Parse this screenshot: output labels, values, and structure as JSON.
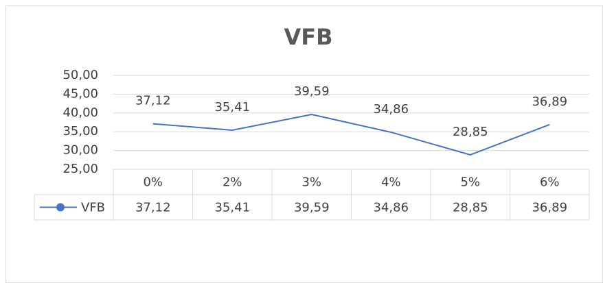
{
  "chart_data": {
    "type": "line",
    "title": "VFB",
    "categories": [
      "0%",
      "2%",
      "3%",
      "4%",
      "5%",
      "6%"
    ],
    "series": [
      {
        "name": "VFB",
        "color": "#4472c4",
        "values": [
          37.12,
          35.41,
          39.59,
          34.86,
          28.85,
          36.89
        ],
        "value_labels": [
          "37,12",
          "35,41",
          "39,59",
          "34,86",
          "28,85",
          "36,89"
        ]
      }
    ],
    "ylim": [
      25,
      50
    ],
    "yticks": [
      {
        "value": 25,
        "label": "25,00"
      },
      {
        "value": 30,
        "label": "30,00"
      },
      {
        "value": 35,
        "label": "35,00"
      },
      {
        "value": 40,
        "label": "40,00"
      },
      {
        "value": 45,
        "label": "45,00"
      },
      {
        "value": 50,
        "label": "50,00"
      }
    ],
    "grid": true
  }
}
